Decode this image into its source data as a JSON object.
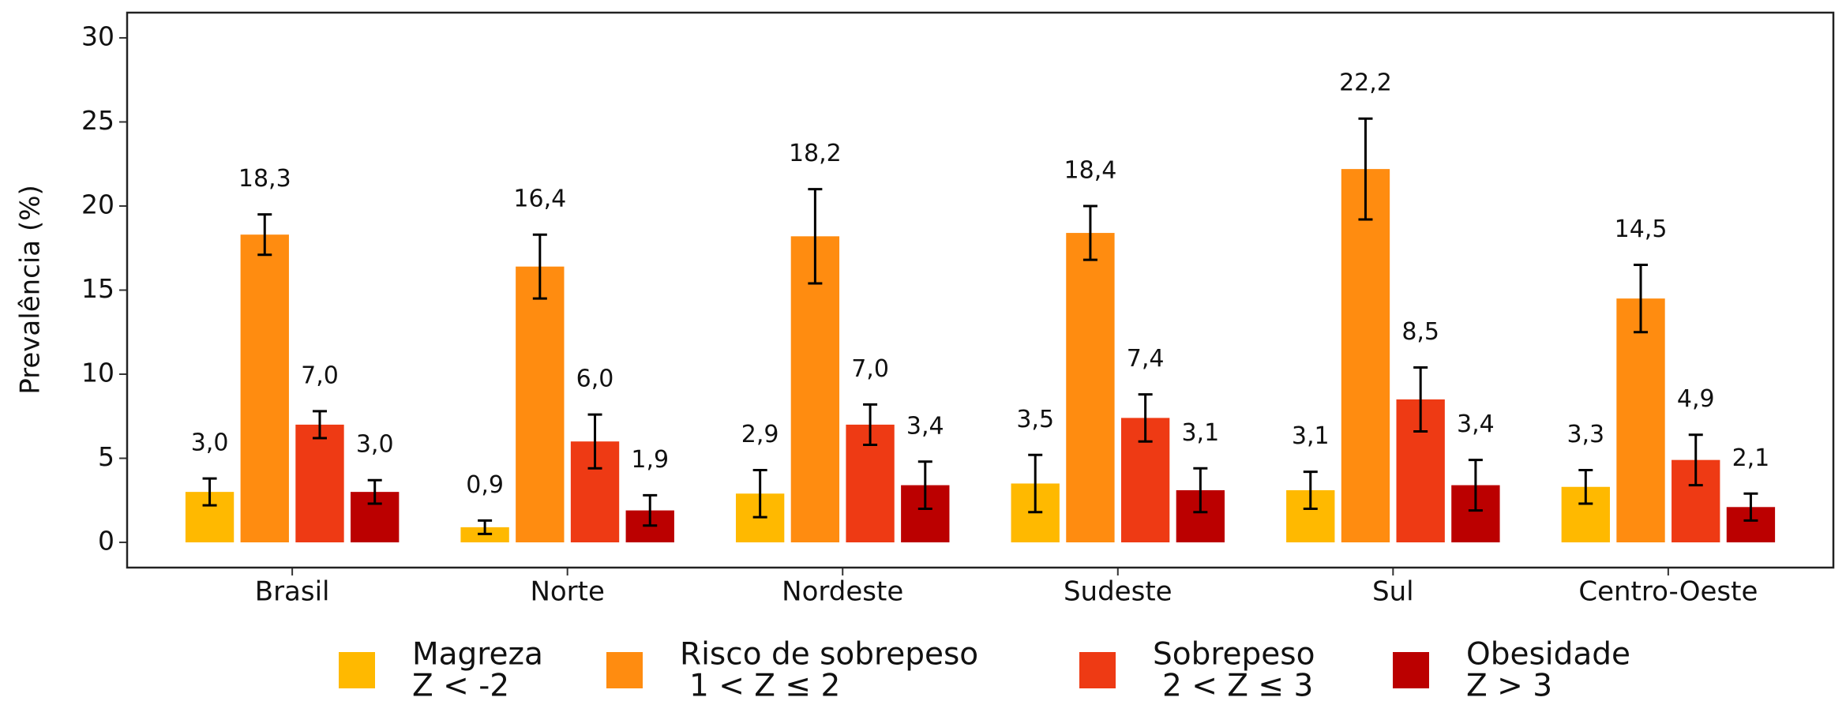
{
  "chart_data": {
    "type": "bar",
    "y_label": "Prevalência (%)",
    "categories": [
      "Brasil",
      "Norte",
      "Nordeste",
      "Sudeste",
      "Sul",
      "Centro-Oeste"
    ],
    "series": [
      {
        "name": "Magreza",
        "condition": "Z < -2",
        "color": "#ffb900",
        "values": [
          3.0,
          0.9,
          2.9,
          3.5,
          3.1,
          3.3
        ],
        "value_labels": [
          "3,0",
          "0,9",
          "2,9",
          "3,5",
          "3,1",
          "3,3"
        ],
        "errors": [
          0.8,
          0.4,
          1.4,
          1.7,
          1.1,
          1.0
        ]
      },
      {
        "name": "Risco de sobrepeso",
        "condition": "1 < Z ≤ 2",
        "color": "#ff8c10",
        "values": [
          18.3,
          16.4,
          18.2,
          18.4,
          22.2,
          14.5
        ],
        "value_labels": [
          "18,3",
          "16,4",
          "18,2",
          "18,4",
          "22,2",
          "14,5"
        ],
        "errors": [
          1.2,
          1.9,
          2.8,
          1.6,
          3.0,
          2.0
        ]
      },
      {
        "name": "Sobrepeso",
        "condition": "2 < Z ≤ 3",
        "color": "#ee3a14",
        "values": [
          7.0,
          6.0,
          7.0,
          7.4,
          8.5,
          4.9
        ],
        "value_labels": [
          "7,0",
          "6,0",
          "7,0",
          "7,4",
          "8,5",
          "4,9"
        ],
        "errors": [
          0.8,
          1.6,
          1.2,
          1.4,
          1.9,
          1.5
        ]
      },
      {
        "name": "Obesidade",
        "condition": "Z > 3",
        "color": "#bb0000",
        "values": [
          3.0,
          1.9,
          3.4,
          3.1,
          3.4,
          2.1
        ],
        "value_labels": [
          "3,0",
          "1,9",
          "3,4",
          "3,1",
          "3,4",
          "2,1"
        ],
        "errors": [
          0.7,
          0.9,
          1.4,
          1.3,
          1.5,
          0.8
        ]
      }
    ],
    "ylim": [
      -1.5,
      31.5
    ],
    "yticks": [
      0,
      5,
      10,
      15,
      20,
      25,
      30
    ]
  }
}
